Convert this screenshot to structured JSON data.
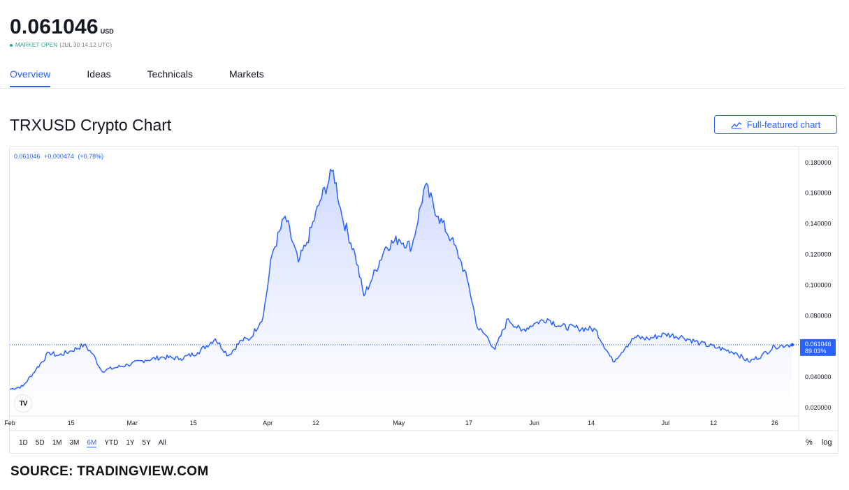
{
  "header": {
    "price": "0.061046",
    "currency": "USD",
    "market_status": "MARKET OPEN",
    "market_time": "(JUL 30 14:12 UTC)"
  },
  "tabs": [
    {
      "label": "Overview",
      "active": true
    },
    {
      "label": "Ideas",
      "active": false
    },
    {
      "label": "Technicals",
      "active": false
    },
    {
      "label": "Markets",
      "active": false
    }
  ],
  "chart_title": "TRXUSD Crypto Chart",
  "full_chart_button": "Full-featured chart",
  "legend": {
    "value": "0.061046",
    "change": "+0.000474",
    "change_pct": "(+0.78%)"
  },
  "price_label": {
    "value": "0.061046",
    "pct": "89.03%"
  },
  "logo_text": "TV",
  "ranges": [
    {
      "label": "1D",
      "active": false
    },
    {
      "label": "5D",
      "active": false
    },
    {
      "label": "1M",
      "active": false
    },
    {
      "label": "3M",
      "active": false
    },
    {
      "label": "6M",
      "active": true
    },
    {
      "label": "YTD",
      "active": false
    },
    {
      "label": "1Y",
      "active": false
    },
    {
      "label": "5Y",
      "active": false
    },
    {
      "label": "All",
      "active": false
    }
  ],
  "scale_toggles": {
    "percent": "%",
    "log": "log"
  },
  "source": "SOURCE: TRADINGVIEW.COM",
  "colors": {
    "accent": "#2962ff",
    "line": "#2962ff",
    "area_top": "#d7e0ff",
    "open_green": "#22ab94"
  },
  "chart_data": {
    "type": "area",
    "title": "TRXUSD Crypto Chart",
    "xlabel": "",
    "ylabel": "",
    "ylim": [
      0.015,
      0.1895
    ],
    "x_domain": [
      "2021-02-01",
      "2021-07-31"
    ],
    "x_ticks": [
      {
        "label": "Feb",
        "date": "2021-02-01"
      },
      {
        "label": "15",
        "date": "2021-02-15"
      },
      {
        "label": "Mar",
        "date": "2021-03-01"
      },
      {
        "label": "15",
        "date": "2021-03-15"
      },
      {
        "label": "Apr",
        "date": "2021-04-01"
      },
      {
        "label": "12",
        "date": "2021-04-12"
      },
      {
        "label": "May",
        "date": "2021-05-01"
      },
      {
        "label": "17",
        "date": "2021-05-17"
      },
      {
        "label": "Jun",
        "date": "2021-06-01"
      },
      {
        "label": "14",
        "date": "2021-06-14"
      },
      {
        "label": "Jul",
        "date": "2021-07-01"
      },
      {
        "label": "12",
        "date": "2021-07-12"
      },
      {
        "label": "26",
        "date": "2021-07-26"
      }
    ],
    "y_ticks": [
      "0.020000",
      "0.040000",
      "0.060000",
      "0.080000",
      "0.100000",
      "0.120000",
      "0.140000",
      "0.160000",
      "0.180000"
    ],
    "y_tick_values": [
      0.02,
      0.04,
      0.06,
      0.08,
      0.1,
      0.12,
      0.14,
      0.16,
      0.18
    ],
    "grid": false,
    "last_value": 0.061046,
    "series": [
      {
        "name": "",
        "x": [
          "2021-02-01",
          "2021-02-04",
          "2021-02-07",
          "2021-02-10",
          "2021-02-12",
          "2021-02-15",
          "2021-02-18",
          "2021-02-20",
          "2021-02-22",
          "2021-02-25",
          "2021-02-28",
          "2021-03-04",
          "2021-03-08",
          "2021-03-12",
          "2021-03-16",
          "2021-03-20",
          "2021-03-23",
          "2021-03-26",
          "2021-03-28",
          "2021-03-31",
          "2021-04-02",
          "2021-04-05",
          "2021-04-08",
          "2021-04-10",
          "2021-04-13",
          "2021-04-16",
          "2021-04-18",
          "2021-04-21",
          "2021-04-23",
          "2021-04-25",
          "2021-04-28",
          "2021-05-01",
          "2021-05-04",
          "2021-05-07",
          "2021-05-10",
          "2021-05-13",
          "2021-05-15",
          "2021-05-17",
          "2021-05-19",
          "2021-05-21",
          "2021-05-23",
          "2021-05-26",
          "2021-05-29",
          "2021-06-01",
          "2021-06-04",
          "2021-06-07",
          "2021-06-11",
          "2021-06-15",
          "2021-06-19",
          "2021-06-22",
          "2021-06-24",
          "2021-06-27",
          "2021-07-01",
          "2021-07-05",
          "2021-07-09",
          "2021-07-13",
          "2021-07-17",
          "2021-07-20",
          "2021-07-23",
          "2021-07-26",
          "2021-07-29",
          "2021-07-30"
        ],
        "values": [
          0.032,
          0.034,
          0.045,
          0.056,
          0.054,
          0.057,
          0.061,
          0.055,
          0.044,
          0.046,
          0.048,
          0.051,
          0.053,
          0.052,
          0.056,
          0.065,
          0.054,
          0.064,
          0.065,
          0.08,
          0.12,
          0.145,
          0.115,
          0.128,
          0.155,
          0.175,
          0.145,
          0.12,
          0.093,
          0.105,
          0.125,
          0.13,
          0.125,
          0.165,
          0.145,
          0.13,
          0.117,
          0.1,
          0.072,
          0.067,
          0.058,
          0.078,
          0.07,
          0.075,
          0.078,
          0.073,
          0.072,
          0.071,
          0.05,
          0.06,
          0.066,
          0.065,
          0.068,
          0.066,
          0.062,
          0.059,
          0.056,
          0.05,
          0.054,
          0.06,
          0.061,
          0.061
        ]
      }
    ]
  }
}
